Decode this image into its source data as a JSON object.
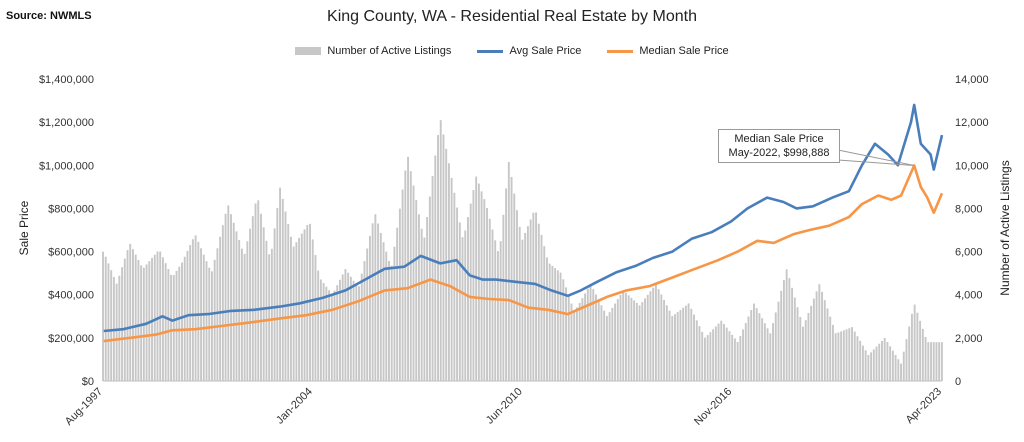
{
  "source": "Source: NWMLS",
  "title": "King County, WA -  Residential Real Estate by Month",
  "legend": {
    "bars": "Number of Active Listings",
    "avg": "Avg Sale Price",
    "median": "Median Sale Price"
  },
  "annotation": {
    "line1": "Median Sale Price",
    "line2": "May-2022, $998,888"
  },
  "chart_data": {
    "type": "bar",
    "title": "King County, WA -  Residential Real Estate by Month",
    "ylabel": "Sale Price",
    "y2label": "Number of Active Listings",
    "ylim": [
      0,
      1400000
    ],
    "y2lim": [
      0,
      14000
    ],
    "y_ticks": [
      "$0",
      "$200,000",
      "$400,000",
      "$600,000",
      "$800,000",
      "$1,000,000",
      "$1,200,000",
      "$1,400,000"
    ],
    "y2_ticks": [
      "0",
      "2,000",
      "4,000",
      "6,000",
      "8,000",
      "10,000",
      "12,000",
      "14,000"
    ],
    "x_ticks": [
      {
        "label": "Aug-1997",
        "year": 1997.58
      },
      {
        "label": "Jan-2004",
        "year": 2004.0
      },
      {
        "label": "Jun-2010",
        "year": 2010.42
      },
      {
        "label": "Nov-2016",
        "year": 2016.83
      },
      {
        "label": "Apr-2023",
        "year": 2023.25
      }
    ],
    "x_range": [
      1997.58,
      2023.25
    ],
    "colors": {
      "bars": "#c7c7c7",
      "avg": "#4a7ebb",
      "median": "#f79646"
    },
    "series": [
      {
        "name": "Number of Active Listings",
        "axis": "right",
        "x": [
          1997.6,
          1998.0,
          1998.4,
          1998.8,
          1999.3,
          1999.7,
          2000.0,
          2000.4,
          2000.9,
          2001.4,
          2001.9,
          2002.3,
          2002.7,
          2003.0,
          2003.4,
          2003.9,
          2004.2,
          2004.6,
          2005.0,
          2005.4,
          2005.9,
          2006.4,
          2006.9,
          2007.4,
          2007.9,
          2008.2,
          2008.6,
          2009.0,
          2009.3,
          2009.7,
          2010.0,
          2010.4,
          2010.8,
          2011.2,
          2011.6,
          2012.0,
          2012.5,
          2013.0,
          2013.5,
          2014.0,
          2014.5,
          2015.0,
          2015.5,
          2016.0,
          2016.5,
          2017.0,
          2017.5,
          2018.0,
          2018.5,
          2019.0,
          2019.5,
          2020.0,
          2020.5,
          2021.0,
          2021.5,
          2022.0,
          2022.4,
          2022.8,
          2023.25
        ],
        "values": [
          6000,
          4500,
          6400,
          5200,
          6100,
          4800,
          5500,
          6800,
          5000,
          8200,
          5800,
          8600,
          5600,
          9000,
          6200,
          7400,
          4800,
          4000,
          5200,
          4300,
          7800,
          5200,
          10500,
          6500,
          12200,
          9800,
          6500,
          9500,
          8200,
          5800,
          10200,
          6500,
          8000,
          5500,
          5000,
          3200,
          4500,
          3000,
          4200,
          3500,
          4500,
          3000,
          3600,
          2000,
          2800,
          1800,
          3600,
          2200,
          5200,
          2500,
          4500,
          2200,
          2500,
          1200,
          2000,
          800,
          3600,
          1800,
          1800
        ]
      },
      {
        "name": "Avg Sale Price",
        "axis": "left",
        "x": [
          1997.6,
          1998.2,
          1998.9,
          1999.4,
          1999.7,
          2000.2,
          2000.8,
          2001.5,
          2002.2,
          2003.0,
          2003.6,
          2004.3,
          2005.0,
          2005.6,
          2006.2,
          2006.8,
          2007.3,
          2007.9,
          2008.4,
          2008.8,
          2009.2,
          2009.6,
          2010.2,
          2010.8,
          2011.3,
          2011.8,
          2012.2,
          2012.7,
          2013.3,
          2013.9,
          2014.4,
          2015.0,
          2015.6,
          2016.2,
          2016.8,
          2017.3,
          2017.9,
          2018.4,
          2018.8,
          2019.3,
          2019.9,
          2020.4,
          2020.8,
          2021.2,
          2021.6,
          2021.9,
          2022.3,
          2022.4,
          2022.6,
          2022.9,
          2023.0,
          2023.25
        ],
        "values": [
          232000,
          240000,
          265000,
          300000,
          280000,
          305000,
          310000,
          325000,
          330000,
          345000,
          360000,
          385000,
          420000,
          470000,
          520000,
          530000,
          580000,
          545000,
          560000,
          490000,
          470000,
          470000,
          460000,
          450000,
          420000,
          395000,
          420000,
          460000,
          505000,
          535000,
          570000,
          600000,
          660000,
          690000,
          740000,
          800000,
          850000,
          830000,
          800000,
          810000,
          850000,
          880000,
          1000000,
          1100000,
          1050000,
          1000000,
          1200000,
          1280000,
          1100000,
          1050000,
          980000,
          1140000
        ]
      },
      {
        "name": "Median Sale Price",
        "axis": "left",
        "x": [
          1997.6,
          1998.4,
          1999.2,
          1999.7,
          2000.4,
          2001.2,
          2002.0,
          2003.0,
          2003.8,
          2004.6,
          2005.4,
          2006.2,
          2006.9,
          2007.6,
          2008.2,
          2008.8,
          2009.4,
          2010.0,
          2010.6,
          2011.2,
          2011.8,
          2012.4,
          2013.0,
          2013.6,
          2014.3,
          2015.0,
          2015.7,
          2016.4,
          2017.0,
          2017.6,
          2018.1,
          2018.7,
          2019.2,
          2019.8,
          2020.4,
          2020.8,
          2021.3,
          2021.7,
          2022.0,
          2022.4,
          2022.6,
          2022.8,
          2023.0,
          2023.25
        ],
        "values": [
          185000,
          200000,
          215000,
          235000,
          240000,
          255000,
          270000,
          290000,
          305000,
          330000,
          370000,
          420000,
          430000,
          470000,
          440000,
          390000,
          380000,
          375000,
          340000,
          330000,
          310000,
          350000,
          390000,
          420000,
          440000,
          480000,
          520000,
          560000,
          600000,
          650000,
          640000,
          680000,
          700000,
          720000,
          760000,
          820000,
          860000,
          840000,
          860000,
          998888,
          900000,
          850000,
          780000,
          870000
        ]
      }
    ]
  }
}
